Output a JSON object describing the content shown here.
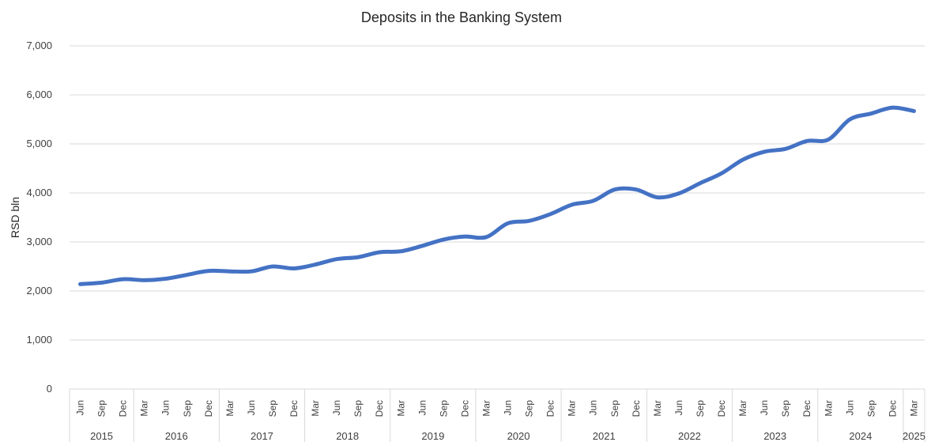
{
  "chart_data": {
    "type": "line",
    "title": "Deposits in the Banking System",
    "ylabel": "RSD bln",
    "xlabel": "",
    "ylim": [
      0,
      7000
    ],
    "yticks": [
      "0",
      "1,000",
      "2,000",
      "3,000",
      "4,000",
      "5,000",
      "6,000",
      "7,000"
    ],
    "grid": true,
    "legend": "none",
    "line_color": "#4472C4",
    "categories": [
      "Jun",
      "Sep",
      "Dec",
      "Mar",
      "Jun",
      "Sep",
      "Dec",
      "Mar",
      "Jun",
      "Sep",
      "Dec",
      "Mar",
      "Jun",
      "Sep",
      "Dec",
      "Mar",
      "Jun",
      "Sep",
      "Dec",
      "Mar",
      "Jun",
      "Sep",
      "Dec",
      "Mar",
      "Jun",
      "Sep",
      "Dec",
      "Mar",
      "Jun",
      "Sep",
      "Dec",
      "Mar",
      "Jun",
      "Sep",
      "Dec",
      "Mar",
      "Jun",
      "Sep",
      "Dec",
      "Mar"
    ],
    "years": [
      {
        "label": "2015",
        "count": 3
      },
      {
        "label": "2016",
        "count": 4
      },
      {
        "label": "2017",
        "count": 4
      },
      {
        "label": "2018",
        "count": 4
      },
      {
        "label": "2019",
        "count": 4
      },
      {
        "label": "2020",
        "count": 4
      },
      {
        "label": "2021",
        "count": 4
      },
      {
        "label": "2022",
        "count": 4
      },
      {
        "label": "2023",
        "count": 4
      },
      {
        "label": "2024",
        "count": 4
      },
      {
        "label": "2025",
        "count": 1
      }
    ],
    "series": [
      {
        "values": [
          2140,
          2170,
          2240,
          2220,
          2250,
          2330,
          2410,
          2400,
          2400,
          2500,
          2460,
          2540,
          2650,
          2690,
          2790,
          2810,
          2920,
          3050,
          3110,
          3100,
          3380,
          3430,
          3570,
          3760,
          3840,
          4070,
          4070,
          3910,
          3990,
          4200,
          4400,
          4680,
          4840,
          4900,
          5060,
          5090,
          5500,
          5620,
          5740,
          5670
        ]
      }
    ]
  }
}
